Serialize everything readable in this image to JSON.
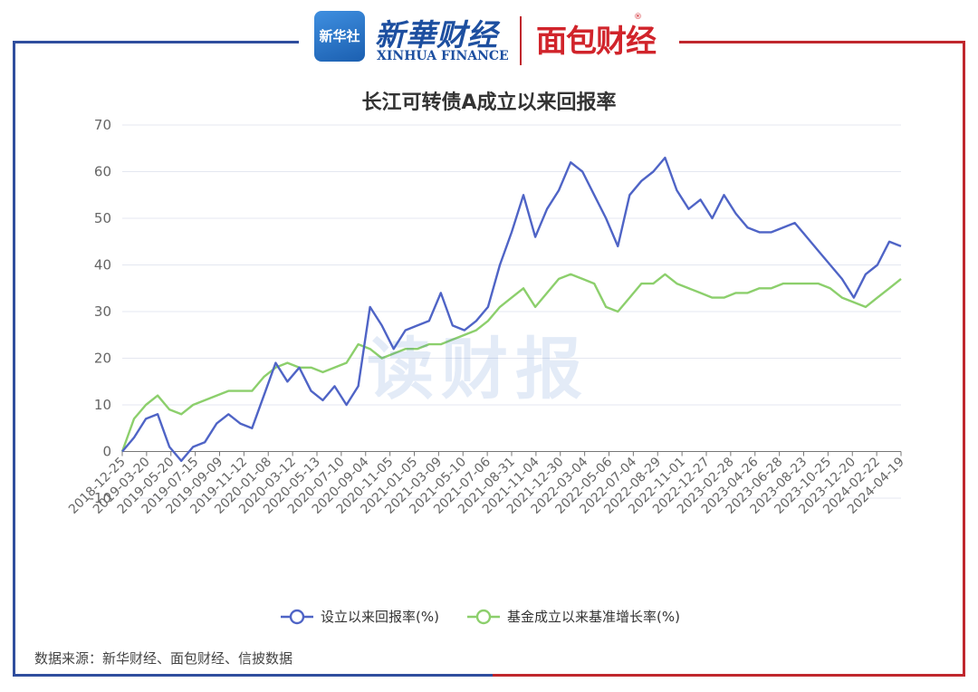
{
  "header": {
    "xinhua_icon_text": "新华社",
    "xinhua_cn": "新華财经",
    "xinhua_en": "XINHUA FINANCE",
    "mianbao": "面包财经",
    "watermark": "读财报"
  },
  "source_note": "数据来源：新华财经、面包财经、信披数据",
  "colors": {
    "series1": "#4f64c6",
    "series2": "#8ccf6c",
    "frame_left": "#2f4e9e",
    "frame_right": "#c0272d"
  },
  "chart_data": {
    "type": "line",
    "title": "长江可转债A成立以来回报率",
    "ylim": [
      -10,
      70
    ],
    "yticks": [
      "70",
      "60",
      "50",
      "40",
      "30",
      "20",
      "10",
      "0",
      "-10"
    ],
    "grid": true,
    "legend_position": "bottom",
    "x_tick_labels": [
      "2018-12-25",
      "2019-03-20",
      "2019-05-20",
      "2019-07-15",
      "2019-09-09",
      "2019-11-12",
      "2020-01-08",
      "2020-03-12",
      "2020-05-13",
      "2020-07-10",
      "2020-09-04",
      "2020-11-05",
      "2021-01-05",
      "2021-03-09",
      "2021-05-10",
      "2021-07-06",
      "2021-08-31",
      "2021-11-04",
      "2021-12-30",
      "2022-03-04",
      "2022-05-06",
      "2022-07-04",
      "2022-08-29",
      "2022-11-01",
      "2022-12-27",
      "2023-02-28",
      "2023-04-26",
      "2023-06-28",
      "2023-08-23",
      "2023-10-25",
      "2023-12-20",
      "2024-02-22",
      "2024-04-19"
    ],
    "x_values": [
      0,
      1,
      2,
      3,
      4,
      5,
      6,
      7,
      8,
      9,
      10,
      11,
      12,
      13,
      14,
      15,
      16,
      17,
      18,
      19,
      20,
      21,
      22,
      23,
      24,
      25,
      26,
      27,
      28,
      29,
      30,
      31,
      32,
      33,
      34,
      35,
      36,
      37,
      38,
      39,
      40,
      41,
      42,
      43,
      44,
      45,
      46,
      47,
      48,
      49,
      50,
      51,
      52,
      53,
      54,
      55,
      56,
      57,
      58,
      59,
      60,
      61,
      62,
      63,
      64,
      65,
      66
    ],
    "series": [
      {
        "name": "设立以来回报率(%)",
        "values": [
          0,
          3,
          7,
          8,
          1,
          -2,
          1,
          2,
          6,
          8,
          6,
          5,
          12,
          19,
          15,
          18,
          13,
          11,
          14,
          10,
          14,
          31,
          27,
          22,
          26,
          27,
          28,
          34,
          27,
          26,
          28,
          31,
          40,
          47,
          55,
          46,
          52,
          56,
          62,
          60,
          55,
          50,
          44,
          55,
          58,
          60,
          63,
          56,
          52,
          54,
          50,
          55,
          51,
          48,
          47,
          47,
          48,
          49,
          46,
          43,
          40,
          37,
          33,
          38,
          40,
          45,
          44
        ]
      },
      {
        "name": "基金成立以来基准增长率(%)",
        "values": [
          0,
          7,
          10,
          12,
          9,
          8,
          10,
          11,
          12,
          13,
          13,
          13,
          16,
          18,
          19,
          18,
          18,
          17,
          18,
          19,
          23,
          22,
          20,
          21,
          22,
          22,
          23,
          23,
          24,
          25,
          26,
          28,
          31,
          33,
          35,
          31,
          34,
          37,
          38,
          37,
          36,
          31,
          30,
          33,
          36,
          36,
          38,
          36,
          35,
          34,
          33,
          33,
          34,
          34,
          35,
          35,
          36,
          36,
          36,
          36,
          35,
          33,
          32,
          31,
          33,
          35,
          37
        ]
      }
    ]
  }
}
